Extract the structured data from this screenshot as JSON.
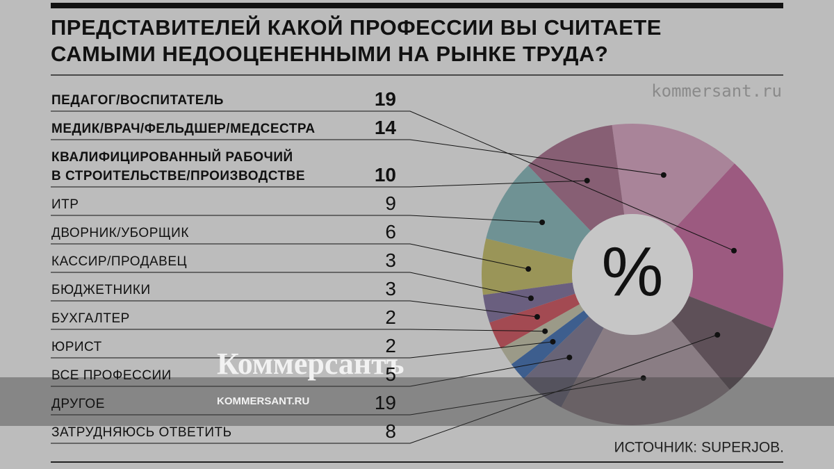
{
  "chart_data": {
    "type": "pie",
    "title": [
      "ПРЕДСТАВИТЕЛЕЙ КАКОЙ ПРОФЕССИИ ВЫ СЧИТАЕТЕ",
      "САМЫМИ НЕДООЦЕНЕННЫМИ НА РЫНКЕ ТРУДА?"
    ],
    "center_label": "%",
    "site": "kommersant.ru",
    "source": "ИСТОЧНИК: SUPERJOB.",
    "watermark": [
      "Коммерсантъ",
      "KOMMERSANT.RU"
    ],
    "categories": [
      "ПЕДАГОГ/ВОСПИТАТЕЛЬ",
      "МЕДИК/ВРАЧ/ФЕЛЬДШЕР/МЕДСЕСТРА",
      "КВАЛИФИЦИРОВАННЫЙ РАБОЧИЙ\nВ СТРОИТЕЛЬСТВЕ/ПРОИЗВОДСТВЕ",
      "ИТР",
      "ДВОРНИК/УБОРЩИК",
      "КАССИР/ПРОДАВЕЦ",
      "БЮДЖЕТНИКИ",
      "БУХГАЛТЕР",
      "ЮРИСТ",
      "ВСЕ ПРОФЕССИИ",
      "ДРУГОЕ",
      "ЗАТРУДНЯЮСЬ ОТВЕТИТЬ"
    ],
    "values": [
      19,
      14,
      10,
      9,
      6,
      3,
      3,
      2,
      2,
      5,
      19,
      8
    ],
    "colors": [
      "#9c5a80",
      "#a98499",
      "#875f74",
      "#6f9294",
      "#9a9558",
      "#6a5f7f",
      "#a34a52",
      "#9b9a88",
      "#3d5e8e",
      "#686477",
      "#8a7d84",
      "#5e5058"
    ]
  }
}
